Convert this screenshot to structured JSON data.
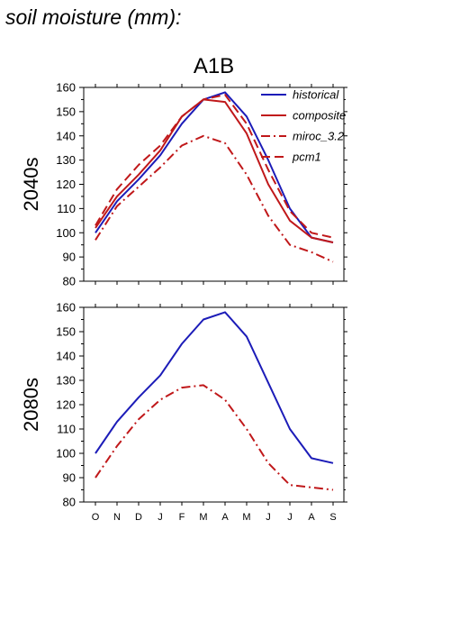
{
  "page_title": "soil moisture (mm):",
  "colors": {
    "historical": "#1c1cb8",
    "model": "#c0181a",
    "axis": "#000000"
  },
  "chart_data": [
    {
      "type": "line",
      "title": "A1B",
      "ylabel": "2040s",
      "xlabel": "",
      "categories": [
        "O",
        "N",
        "D",
        "J",
        "F",
        "M",
        "A",
        "M",
        "J",
        "J",
        "A",
        "S"
      ],
      "ylim": [
        80,
        160
      ],
      "yticks": [
        80,
        90,
        100,
        110,
        120,
        130,
        140,
        150,
        160
      ],
      "legend_position": "top-right",
      "series": [
        {
          "name": "historical",
          "style": "solid",
          "color": "#1c1cb8",
          "values": [
            100,
            113,
            122,
            132,
            145,
            155,
            158,
            148,
            130,
            110,
            98,
            96
          ]
        },
        {
          "name": "composite",
          "style": "solid",
          "color": "#c0181a",
          "values": [
            102,
            115,
            124,
            134,
            148,
            155,
            154,
            141,
            120,
            105,
            98,
            96
          ]
        },
        {
          "name": "miroc_3.2",
          "style": "dashdot",
          "color": "#c0181a",
          "values": [
            97,
            111,
            119,
            127,
            136,
            140,
            137,
            124,
            107,
            95,
            92,
            88
          ]
        },
        {
          "name": "pcm1",
          "style": "dash",
          "color": "#c0181a",
          "values": [
            103,
            118,
            128,
            136,
            148,
            155,
            157,
            145,
            126,
            109,
            100,
            98
          ]
        }
      ]
    },
    {
      "type": "line",
      "title": "",
      "ylabel": "2080s",
      "xlabel": "",
      "categories": [
        "O",
        "N",
        "D",
        "J",
        "F",
        "M",
        "A",
        "M",
        "J",
        "J",
        "A",
        "S"
      ],
      "ylim": [
        80,
        160
      ],
      "yticks": [
        80,
        90,
        100,
        110,
        120,
        130,
        140,
        150,
        160
      ],
      "series": [
        {
          "style": "solid",
          "color": "#1c1cb8",
          "values": [
            100,
            113,
            123,
            132,
            145,
            155,
            158,
            148,
            129,
            110,
            98,
            96
          ]
        },
        {
          "style": "dashdot",
          "color": "#c0181a",
          "values": [
            90,
            103,
            114,
            122,
            127,
            128,
            122,
            110,
            96,
            87,
            86,
            85
          ]
        }
      ]
    }
  ]
}
